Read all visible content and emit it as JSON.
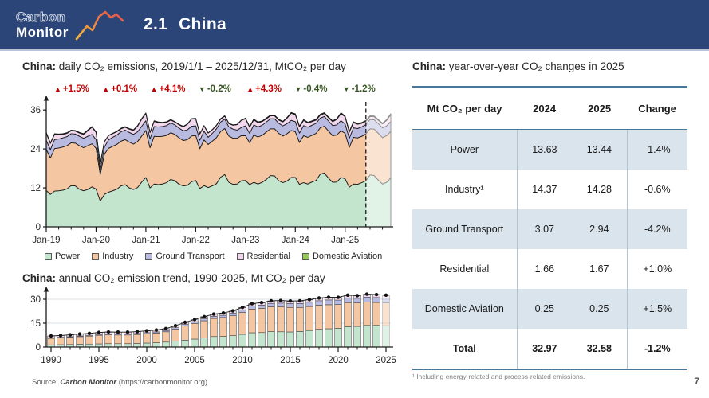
{
  "header": {
    "logo_line1": "Carbon",
    "logo_line2": "Monitor",
    "section_number": "2.1",
    "section_name": "China",
    "bar_color": "#2B4579"
  },
  "left_panel": {
    "daily_title_bold": "China:",
    "daily_title_rest": " daily CO₂ emissions, 2019/1/1 – 2025/12/31, MtCO₂ per day",
    "annual_title_bold": "China:",
    "annual_title_rest": " annual CO₂ emission trend, 1990-2025, Mt CO₂ per day",
    "source_prefix": "Source: ",
    "source_name": "Carbon Monitor",
    "source_suffix": " (https://carbonmonitor.org)"
  },
  "right_panel": {
    "title_bold": "China:",
    "title_rest": " year-over-year CO₂ changes in 2025",
    "table": {
      "headers": [
        "Mt CO₂ per day",
        "2024",
        "2025",
        "Change"
      ],
      "rows": [
        {
          "label": "Power",
          "y2024": "13.63",
          "y2025": "13.44",
          "change": "-1.4%",
          "shaded": true,
          "total": false
        },
        {
          "label": "Industry¹",
          "y2024": "14.37",
          "y2025": "14.28",
          "change": "-0.6%",
          "shaded": false,
          "total": false
        },
        {
          "label": "Ground Transport",
          "y2024": "3.07",
          "y2025": "2.94",
          "change": "-4.2%",
          "shaded": true,
          "total": false
        },
        {
          "label": "Residential",
          "y2024": "1.66",
          "y2025": "1.67",
          "change": "+1.0%",
          "shaded": false,
          "total": false
        },
        {
          "label": "Domestic Aviation",
          "y2024": "0.25",
          "y2025": "0.25",
          "change": "+1.5%",
          "shaded": true,
          "total": false
        },
        {
          "label": "Total",
          "y2024": "32.97",
          "y2025": "32.58",
          "change": "-1.2%",
          "shaded": false,
          "total": true
        }
      ]
    },
    "footnote": "¹ Including energy-related and process-related emissions.",
    "page_number": "7"
  },
  "chart_data": [
    {
      "type": "area",
      "title": "China: daily CO2 emissions, 2019/1/1 - 2025/12/31, MtCO2 per day",
      "x_unit": "month",
      "x_tick_labels": [
        "Jan-19",
        "Jan-20",
        "Jan-21",
        "Jan-22",
        "Jan-23",
        "Jan-24",
        "Jan-25"
      ],
      "ylim": [
        0,
        38
      ],
      "yticks": [
        0,
        12,
        24,
        36
      ],
      "projection_index": 77,
      "up_color": "#C00000",
      "down_color": "#375623",
      "annotations": [
        {
          "dir": "up",
          "label": "+1.5%"
        },
        {
          "dir": "up",
          "label": "+0.1%"
        },
        {
          "dir": "up",
          "label": "+4.1%"
        },
        {
          "dir": "down",
          "label": "-0.2%"
        },
        {
          "dir": "up",
          "label": "+4.3%"
        },
        {
          "dir": "down",
          "label": "-0.4%"
        },
        {
          "dir": "down",
          "label": "-1.2%"
        }
      ],
      "series": [
        {
          "name": "Power",
          "color": "#C3E5CE",
          "legend_color": "#C3E5CE",
          "values": [
            11.2,
            10.0,
            11.0,
            11.1,
            11.3,
            11.7,
            12.7,
            12.6,
            11.6,
            11.1,
            11.5,
            12.3,
            11.6,
            8.0,
            10.0,
            10.7,
            11.1,
            11.6,
            12.6,
            13.0,
            12.0,
            11.5,
            12.1,
            13.8,
            15.2,
            12.0,
            13.2,
            13.0,
            13.2,
            13.6,
            14.6,
            14.2,
            13.1,
            12.6,
            12.8,
            13.9,
            14.3,
            11.8,
            12.7,
            12.1,
            12.6,
            13.3,
            15.3,
            16.1,
            13.7,
            13.1,
            13.2,
            14.2,
            14.3,
            13.0,
            13.7,
            13.2,
            13.7,
            14.6,
            15.8,
            15.7,
            14.2,
            13.6,
            14.1,
            15.2,
            15.2,
            13.1,
            13.6,
            13.2,
            13.8,
            14.3,
            16.2,
            16.6,
            15.0,
            13.7,
            13.8,
            15.2,
            14.8,
            12.2,
            13.2,
            13.1,
            13.6,
            14.2,
            16.0,
            15.8,
            14.4,
            13.2,
            13.7,
            15.1
          ]
        },
        {
          "name": "Industry",
          "color": "#F5C6A2",
          "legend_color": "#F5C6A2",
          "values": [
            12.7,
            11.2,
            13.1,
            13.2,
            13.3,
            13.3,
            13.2,
            13.2,
            13.4,
            13.3,
            13.5,
            13.3,
            12.6,
            8.2,
            12.4,
            13.5,
            13.7,
            13.8,
            13.8,
            13.9,
            14.1,
            14.0,
            14.2,
            14.2,
            14.5,
            12.4,
            14.7,
            14.8,
            14.7,
            14.6,
            14.4,
            14.3,
            14.3,
            14.0,
            14.1,
            14.1,
            13.9,
            12.3,
            14.1,
            13.3,
            13.8,
            14.2,
            14.1,
            14.2,
            14.3,
            14.2,
            14.1,
            13.9,
            13.8,
            12.9,
            14.6,
            14.5,
            14.5,
            14.6,
            14.4,
            14.5,
            14.6,
            14.4,
            14.6,
            14.5,
            14.1,
            12.9,
            14.5,
            14.4,
            14.4,
            14.5,
            14.3,
            14.4,
            14.5,
            14.4,
            14.5,
            14.4,
            14.0,
            12.3,
            14.4,
            14.3,
            14.3,
            14.4,
            14.2,
            14.3,
            14.4,
            14.3,
            14.4,
            14.3
          ]
        },
        {
          "name": "Ground Transport",
          "color": "#B8BADF",
          "legend_color": "#B8BADF",
          "values": [
            2.8,
            2.6,
            2.8,
            2.8,
            2.8,
            2.8,
            2.8,
            2.8,
            2.9,
            2.9,
            2.9,
            2.9,
            2.7,
            1.4,
            2.2,
            2.6,
            2.8,
            2.9,
            2.9,
            2.9,
            3.0,
            3.0,
            3.0,
            3.0,
            3.0,
            2.7,
            3.0,
            3.0,
            3.0,
            3.0,
            3.0,
            2.9,
            3.0,
            3.0,
            3.0,
            3.0,
            2.9,
            2.6,
            2.7,
            2.2,
            2.4,
            2.7,
            2.9,
            2.9,
            2.8,
            2.8,
            2.5,
            2.5,
            3.0,
            2.9,
            3.1,
            3.1,
            3.1,
            3.1,
            3.1,
            3.1,
            3.1,
            3.1,
            3.1,
            3.1,
            3.1,
            2.9,
            3.1,
            3.1,
            3.1,
            3.1,
            3.0,
            3.0,
            3.1,
            3.1,
            3.1,
            3.1,
            2.9,
            2.8,
            2.9,
            2.9,
            2.9,
            2.9,
            2.9,
            2.9,
            3.0,
            3.0,
            3.0,
            3.0
          ]
        },
        {
          "name": "Residential",
          "color": "#F1D8EC",
          "legend_color": "#F1D8EC",
          "values": [
            2.2,
            1.9,
            1.6,
            1.3,
            1.1,
            1.0,
            0.9,
            0.9,
            1.0,
            1.2,
            1.7,
            2.2,
            2.2,
            1.9,
            1.6,
            1.3,
            1.1,
            1.0,
            0.9,
            0.9,
            1.0,
            1.2,
            1.7,
            2.2,
            2.2,
            1.9,
            1.6,
            1.3,
            1.1,
            1.0,
            0.9,
            0.9,
            1.0,
            1.2,
            1.7,
            2.2,
            2.2,
            1.9,
            1.6,
            1.3,
            1.1,
            1.0,
            0.9,
            0.9,
            1.0,
            1.2,
            1.7,
            2.2,
            2.2,
            1.9,
            1.6,
            1.3,
            1.1,
            1.0,
            0.9,
            0.9,
            1.0,
            1.2,
            1.7,
            2.2,
            2.2,
            1.9,
            1.6,
            1.3,
            1.1,
            1.0,
            0.9,
            0.9,
            1.0,
            1.2,
            1.7,
            2.2,
            2.2,
            1.9,
            1.6,
            1.3,
            1.1,
            1.0,
            0.9,
            0.9,
            1.0,
            1.2,
            1.7,
            2.2
          ]
        },
        {
          "name": "Domestic Aviation",
          "color": "#9DCE63",
          "legend_color": "#93C954",
          "values": [
            0.2,
            0.2,
            0.2,
            0.2,
            0.2,
            0.2,
            0.2,
            0.2,
            0.2,
            0.2,
            0.2,
            0.2,
            0.2,
            0.05,
            0.08,
            0.1,
            0.13,
            0.15,
            0.17,
            0.18,
            0.17,
            0.19,
            0.18,
            0.17,
            0.18,
            0.15,
            0.19,
            0.2,
            0.2,
            0.18,
            0.17,
            0.12,
            0.15,
            0.17,
            0.12,
            0.12,
            0.13,
            0.12,
            0.1,
            0.06,
            0.08,
            0.1,
            0.13,
            0.12,
            0.1,
            0.12,
            0.08,
            0.1,
            0.18,
            0.2,
            0.21,
            0.21,
            0.21,
            0.21,
            0.22,
            0.23,
            0.22,
            0.22,
            0.22,
            0.22,
            0.24,
            0.25,
            0.25,
            0.24,
            0.25,
            0.25,
            0.26,
            0.26,
            0.25,
            0.25,
            0.25,
            0.25,
            0.25,
            0.26,
            0.25,
            0.25,
            0.25,
            0.25,
            0.26,
            0.26,
            0.25,
            0.25,
            0.25,
            0.25
          ]
        }
      ]
    },
    {
      "type": "bar",
      "title": "China: annual CO2 emission trend, 1990-2025, Mt CO2 per day",
      "year_start": 1990,
      "x_tick_labels": [
        "1990",
        "1995",
        "2000",
        "2005",
        "2010",
        "2015",
        "2020",
        "2025"
      ],
      "ylim": [
        0,
        34
      ],
      "yticks": [
        0,
        15,
        30
      ],
      "faded_last_bar": true,
      "series": [
        {
          "name": "Power",
          "color": "#C3E5CE",
          "values": [
            1.4,
            1.5,
            1.6,
            1.8,
            1.9,
            2.0,
            2.1,
            2.1,
            2.1,
            2.3,
            2.5,
            2.7,
            3.1,
            3.7,
            4.3,
            5.0,
            5.8,
            6.6,
            6.7,
            7.2,
            8.0,
            9.0,
            9.1,
            9.7,
            9.6,
            9.5,
            9.8,
            10.4,
            11.2,
            11.5,
            11.8,
            12.8,
            13.0,
            13.6,
            13.63,
            13.44
          ]
        },
        {
          "name": "Industry",
          "color": "#F5C6A2",
          "values": [
            4.08,
            4.24,
            4.48,
            4.75,
            4.99,
            5.42,
            5.6,
            5.48,
            5.49,
            5.59,
            5.85,
            6.08,
            6.49,
            7.54,
            8.88,
            9.83,
            10.7,
            11.36,
            11.86,
            12.47,
            13.68,
            14.8,
            15.21,
            15.6,
            15.72,
            15.35,
            15.04,
            15.06,
            15.06,
            15.05,
            14.88,
            15.05,
            14.68,
            14.65,
            14.36,
            14.28
          ]
        },
        {
          "name": "Ground Transport",
          "color": "#B8BADF",
          "values": [
            0.4,
            0.42,
            0.45,
            0.47,
            0.5,
            0.55,
            0.57,
            0.6,
            0.62,
            0.65,
            0.7,
            0.75,
            0.8,
            0.9,
            1.0,
            1.1,
            1.2,
            1.3,
            1.4,
            1.55,
            1.7,
            1.85,
            2.0,
            2.1,
            2.25,
            2.4,
            2.5,
            2.65,
            2.8,
            3.0,
            2.8,
            3.0,
            2.9,
            3.1,
            3.07,
            2.94
          ]
        },
        {
          "name": "Residential",
          "color": "#F1D8EC",
          "values": [
            1.1,
            1.12,
            1.15,
            1.15,
            1.18,
            1.2,
            1.2,
            1.18,
            1.15,
            1.12,
            1.1,
            1.12,
            1.15,
            1.2,
            1.25,
            1.3,
            1.32,
            1.35,
            1.35,
            1.38,
            1.4,
            1.42,
            1.45,
            1.45,
            1.48,
            1.5,
            1.5,
            1.52,
            1.55,
            1.55,
            1.6,
            1.6,
            1.62,
            1.65,
            1.66,
            1.67
          ]
        },
        {
          "name": "Domestic Aviation",
          "color": "#9DCE63",
          "values": [
            0.02,
            0.02,
            0.02,
            0.03,
            0.03,
            0.03,
            0.03,
            0.04,
            0.04,
            0.04,
            0.05,
            0.05,
            0.06,
            0.06,
            0.07,
            0.07,
            0.08,
            0.09,
            0.09,
            0.1,
            0.12,
            0.13,
            0.14,
            0.15,
            0.15,
            0.15,
            0.16,
            0.17,
            0.19,
            0.2,
            0.12,
            0.15,
            0.1,
            0.2,
            0.25,
            0.25
          ]
        }
      ]
    }
  ]
}
